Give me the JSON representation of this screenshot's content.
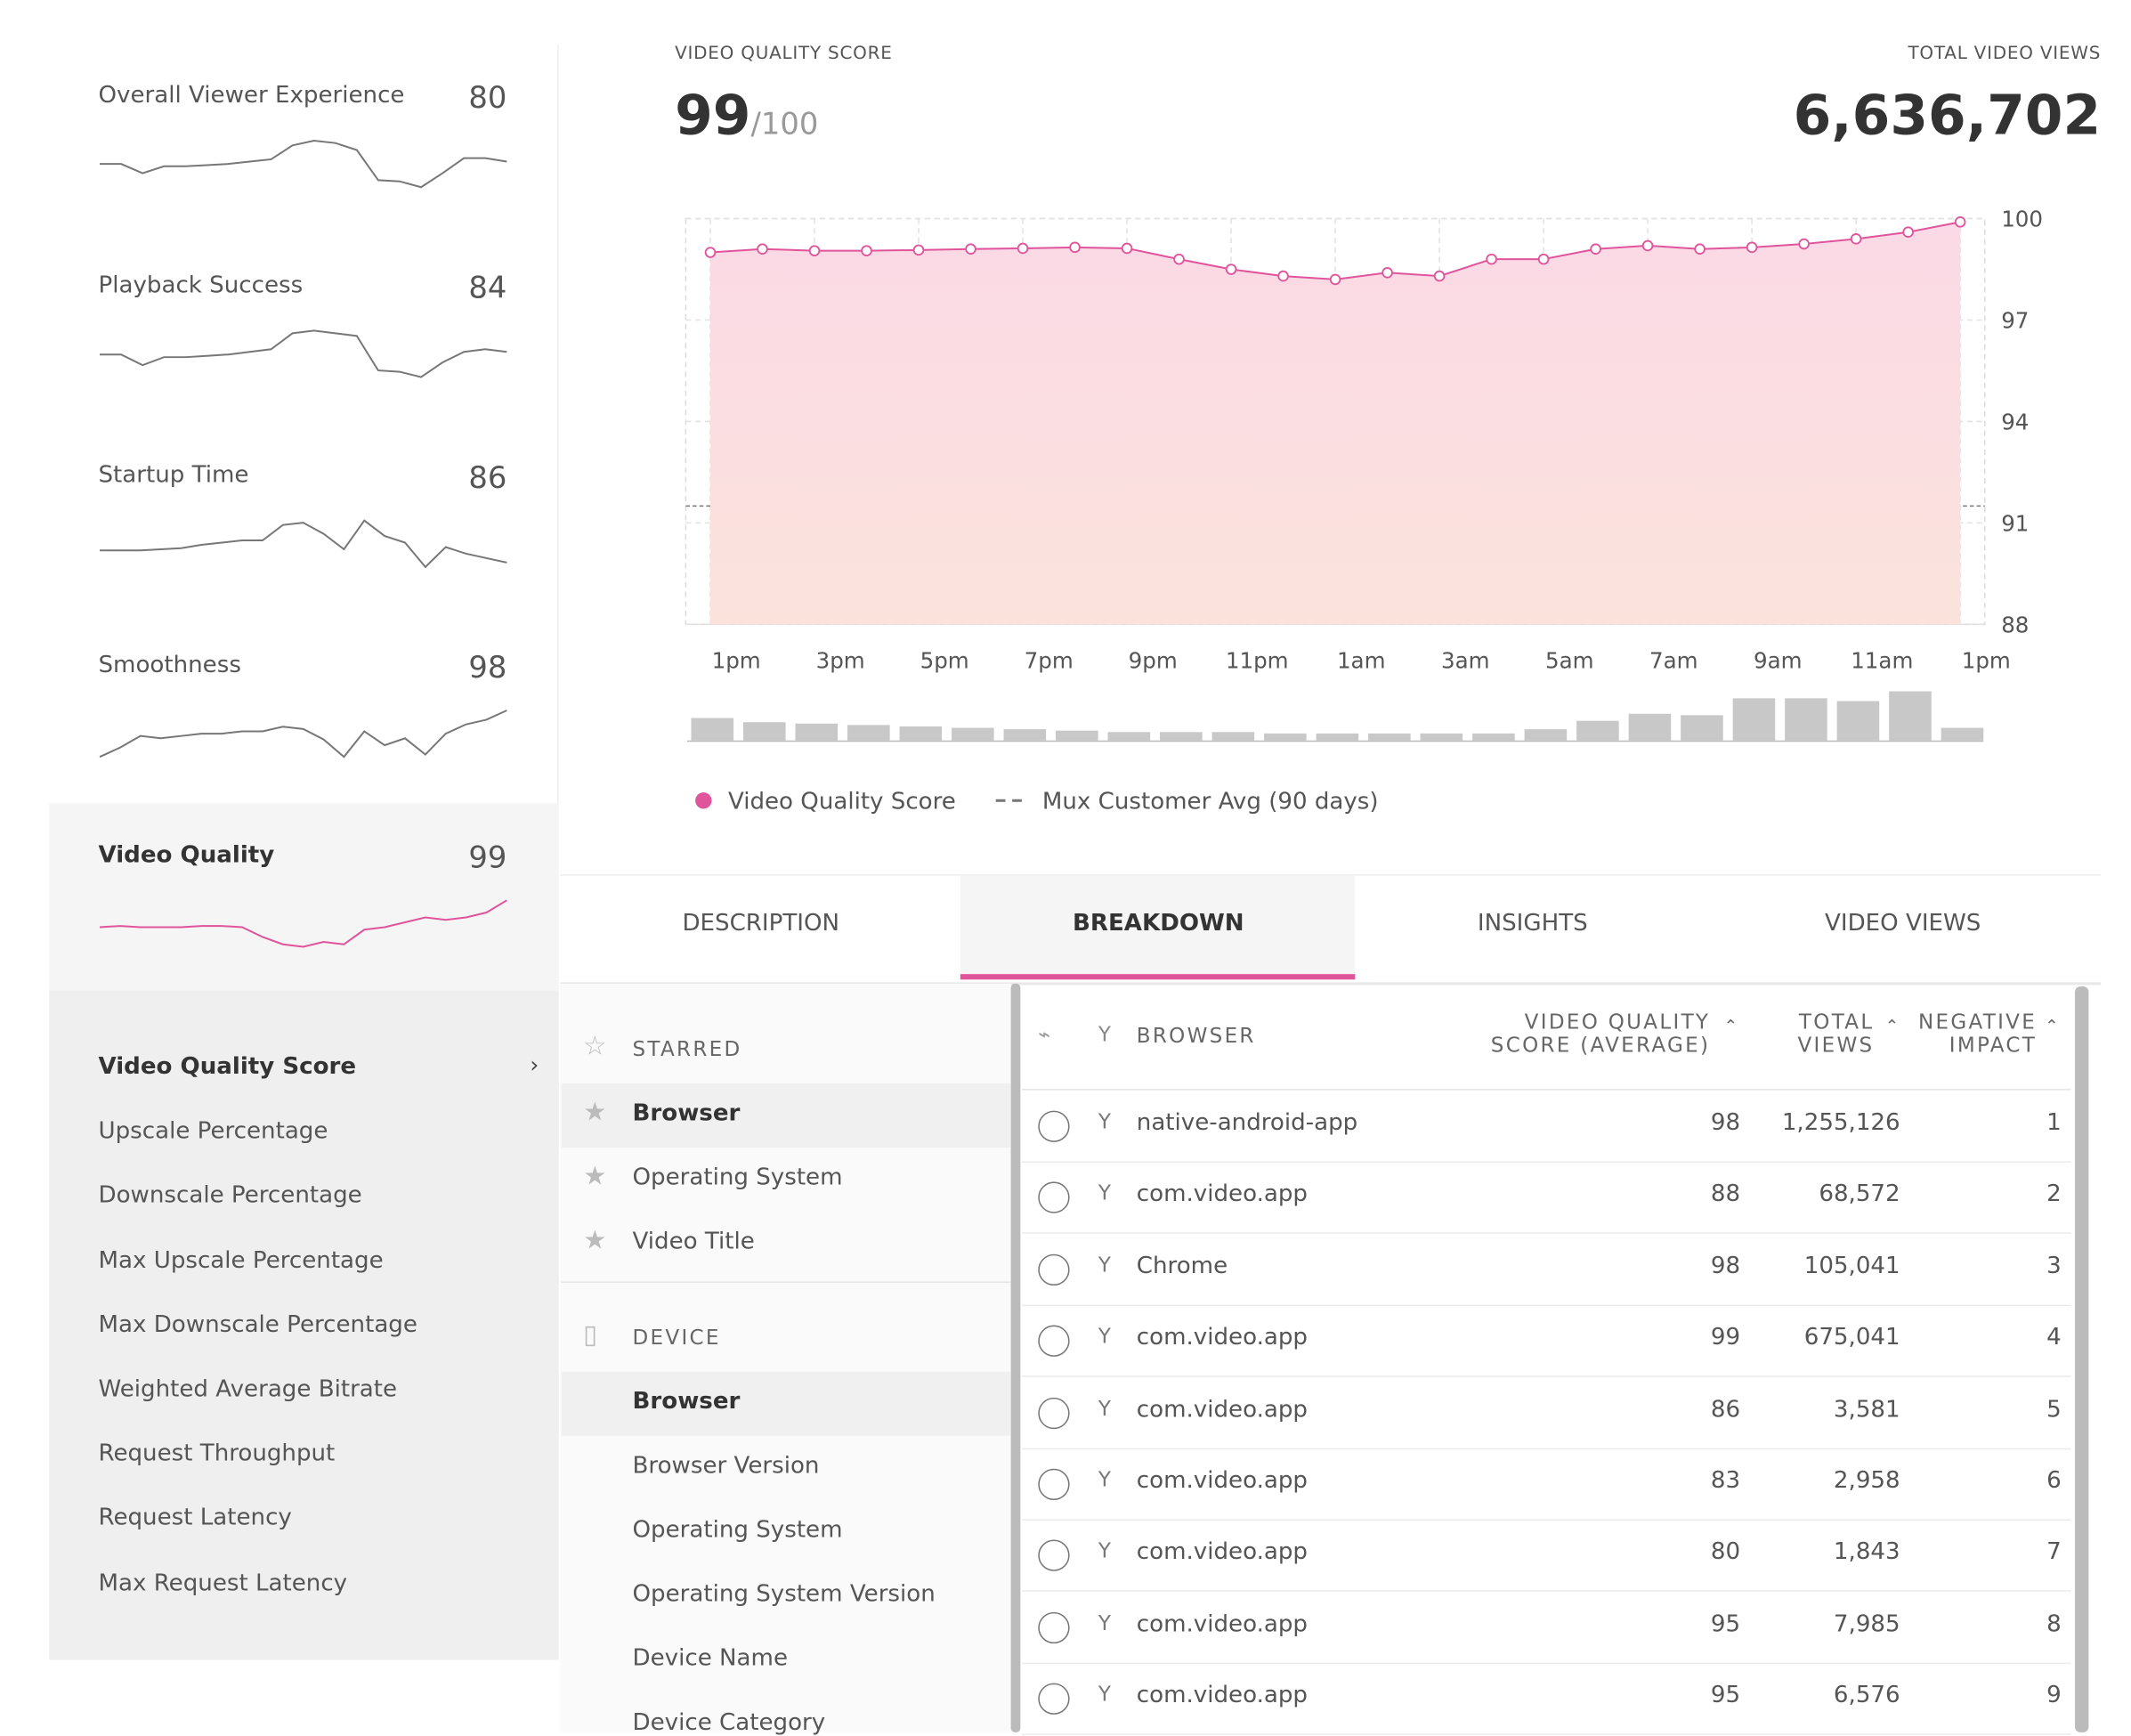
{
  "sidebar": {
    "metrics": [
      {
        "name": "Overall Viewer Experience",
        "score": 80,
        "trend": [
          50,
          50,
          42,
          48,
          48,
          49,
          50,
          52,
          54,
          66,
          70,
          68,
          62,
          36,
          35,
          30,
          42,
          55,
          55,
          52
        ]
      },
      {
        "name": "Playback Success",
        "score": 84,
        "trend": [
          50,
          50,
          42,
          48,
          48,
          49,
          50,
          52,
          54,
          66,
          68,
          66,
          64,
          38,
          37,
          33,
          44,
          52,
          54,
          52
        ]
      },
      {
        "name": "Startup Time",
        "score": 86,
        "trend": [
          45,
          45,
          45,
          46,
          47,
          50,
          52,
          54,
          54,
          68,
          70,
          60,
          46,
          72,
          58,
          52,
          30,
          48,
          42,
          38,
          34
        ]
      },
      {
        "name": "Smoothness",
        "score": 98,
        "trend": [
          30,
          38,
          48,
          46,
          48,
          50,
          50,
          52,
          52,
          56,
          54,
          45,
          30,
          52,
          40,
          46,
          32,
          50,
          58,
          62,
          70
        ]
      },
      {
        "name": "Video Quality",
        "score": 99,
        "trend": [
          50,
          51,
          50,
          50,
          50,
          51,
          51,
          50,
          42,
          36,
          34,
          38,
          36,
          48,
          50,
          54,
          58,
          56,
          58,
          62,
          72
        ]
      }
    ],
    "submetrics": [
      "Video Quality Score",
      "Upscale Percentage",
      "Downscale Percentage",
      "Max Upscale Percentage",
      "Max Downscale Percentage",
      "Weighted Average Bitrate",
      "Request Throughput",
      "Request Latency",
      "Max Request Latency"
    ]
  },
  "header": {
    "score_label": "VIDEO QUALITY SCORE",
    "score": 99,
    "score_max": "/100",
    "views_label": "TOTAL VIDEO VIEWS",
    "views": "6,636,702"
  },
  "chart_data": {
    "type": "line",
    "categories": [
      "1pm",
      null,
      "3pm",
      null,
      "5pm",
      null,
      "7pm",
      null,
      "9pm",
      null,
      "11pm",
      null,
      "1am",
      null,
      "3am",
      null,
      "5am",
      null,
      "7am",
      null,
      "9am",
      null,
      "11am",
      null,
      "1pm"
    ],
    "series": [
      {
        "name": "Video Quality Score",
        "color": "#e0549b",
        "values": [
          99.0,
          99.1,
          99.05,
          99.05,
          99.07,
          99.1,
          99.12,
          99.15,
          99.12,
          98.8,
          98.5,
          98.3,
          98.2,
          98.4,
          98.3,
          98.8,
          98.8,
          99.1,
          99.2,
          99.1,
          99.15,
          99.25,
          99.4,
          99.6,
          99.9
        ]
      }
    ],
    "reference_lines": [
      {
        "name": "Mux Customer Avg (90 days)",
        "value": 91.5
      }
    ],
    "views": [
      16,
      13,
      12,
      11,
      10,
      9,
      8,
      7,
      6,
      6,
      6,
      5,
      5,
      5,
      5,
      5,
      8,
      14,
      19,
      18,
      30,
      30,
      28,
      35,
      9
    ],
    "ylim": [
      88,
      100
    ],
    "yticks": [
      88,
      91,
      94,
      97,
      100
    ],
    "grid": true
  },
  "tabs": [
    "DESCRIPTION",
    "BREAKDOWN",
    "INSIGHTS",
    "VIDEO VIEWS"
  ],
  "breakdown": [
    {
      "title": "STARRED",
      "items": [
        "Browser",
        "Operating System",
        "Video Title"
      ]
    },
    {
      "title": "DEVICE",
      "items": [
        "Browser",
        "Browser Version",
        "Operating System",
        "Operating System Version",
        "Device Name",
        "Device Category"
      ]
    }
  ],
  "table": {
    "columns": [
      "BROWSER",
      "VIDEO QUALITY SCORE (AVERAGE)",
      "TOTAL VIEWS",
      "NEGATIVE IMPACT"
    ],
    "rows": [
      [
        "native-android-app",
        98,
        "1,255,126",
        1
      ],
      [
        "com.video.app",
        88,
        "68,572",
        2
      ],
      [
        "Chrome",
        98,
        "105,041",
        3
      ],
      [
        "com.video.app",
        99,
        "675,041",
        4
      ],
      [
        "com.video.app",
        86,
        "3,581",
        5
      ],
      [
        "com.video.app",
        83,
        "2,958",
        6
      ],
      [
        "com.video.app",
        80,
        "1,843",
        7
      ],
      [
        "com.video.app",
        95,
        "7,985",
        8
      ],
      [
        "com.video.app",
        95,
        "6,576",
        9
      ]
    ]
  }
}
